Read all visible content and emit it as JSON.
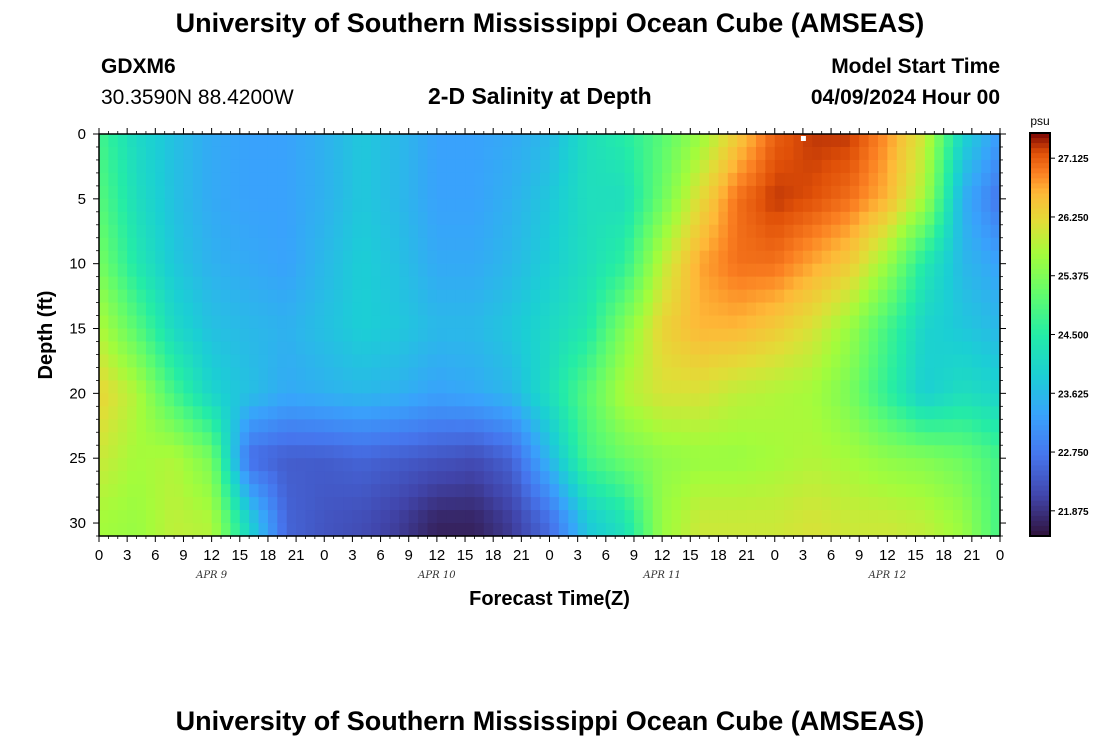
{
  "header": {
    "title": "University of Southern Mississippi Ocean Cube (AMSEAS)",
    "station": "GDXM6",
    "coords": "30.3590N  88.4200W",
    "subtitle": "2-D Salinity at Depth",
    "start_label": "Model Start Time",
    "start_value": "04/09/2024 Hour 00"
  },
  "footer": {
    "title": "University of Southern Mississippi Ocean Cube (AMSEAS)"
  },
  "chart_data": {
    "type": "heatmap",
    "title": "2-D Salinity at Depth",
    "xlabel": "Forecast Time(Z)",
    "ylabel": "Depth (ft)",
    "x_ticks": [
      "0",
      "3",
      "6",
      "9",
      "12",
      "15",
      "18",
      "21",
      "0",
      "3",
      "6",
      "9",
      "12",
      "15",
      "18",
      "21",
      "0",
      "3",
      "6",
      "9",
      "12",
      "15",
      "18",
      "21",
      "0",
      "3",
      "6",
      "9",
      "12",
      "15",
      "18",
      "21",
      "0"
    ],
    "x_tick_hours": [
      0,
      3,
      6,
      9,
      12,
      15,
      18,
      21,
      24,
      27,
      30,
      33,
      36,
      39,
      42,
      45,
      48,
      51,
      54,
      57,
      60,
      63,
      66,
      69,
      72,
      75,
      78,
      81,
      84,
      87,
      90,
      93,
      96
    ],
    "date_labels": [
      {
        "text": "APR 9",
        "hour": 12
      },
      {
        "text": "APR 10",
        "hour": 36
      },
      {
        "text": "APR 11",
        "hour": 60
      },
      {
        "text": "APR 12",
        "hour": 84
      }
    ],
    "y_ticks": [
      0,
      5,
      10,
      15,
      20,
      25,
      30
    ],
    "xlim": [
      0,
      96
    ],
    "ylim": [
      0,
      31
    ],
    "y_inverted": true,
    "colorbar": {
      "unit": "psu",
      "min": 21.5,
      "max": 27.5,
      "tick_values": [
        21.875,
        22.75,
        23.625,
        24.5,
        25.375,
        26.25,
        27.125
      ],
      "tick_labels": [
        "21.875",
        "22.750",
        "23.625",
        "24.500",
        "25.375",
        "26.250",
        "27.125"
      ],
      "colormap": "turbo"
    },
    "hours": [
      0,
      4,
      8,
      12,
      16,
      20,
      24,
      28,
      32,
      36,
      40,
      44,
      48,
      52,
      56,
      60,
      64,
      68,
      72,
      76,
      80,
      84,
      88,
      92,
      96
    ],
    "depths": [
      0,
      5,
      10,
      15,
      20,
      25,
      30
    ],
    "salinity": [
      [
        24.8,
        24.1,
        23.7,
        23.4,
        23.3,
        23.3,
        23.5,
        23.8,
        23.6,
        23.3,
        23.3,
        23.4,
        23.6,
        24.2,
        24.5,
        25.0,
        25.6,
        26.4,
        27.1,
        27.3,
        27.3,
        26.8,
        26.0,
        24.0,
        23.2
      ],
      [
        25.0,
        24.2,
        23.7,
        23.4,
        23.3,
        23.3,
        23.5,
        23.8,
        23.6,
        23.3,
        23.3,
        23.5,
        23.8,
        24.2,
        24.2,
        25.2,
        26.2,
        27.0,
        27.3,
        27.2,
        27.0,
        26.6,
        25.7,
        23.5,
        22.7
      ],
      [
        25.3,
        24.4,
        23.8,
        23.5,
        23.4,
        23.3,
        23.6,
        23.9,
        23.7,
        23.4,
        23.4,
        23.6,
        23.9,
        24.2,
        24.6,
        25.9,
        26.7,
        27.0,
        27.0,
        26.7,
        26.4,
        25.6,
        24.4,
        23.6,
        23.3
      ],
      [
        25.8,
        25.0,
        24.1,
        23.7,
        23.6,
        23.5,
        23.7,
        23.9,
        23.8,
        23.6,
        23.6,
        23.8,
        24.1,
        24.4,
        25.4,
        26.3,
        26.6,
        26.6,
        26.4,
        26.1,
        25.6,
        24.8,
        24.0,
        23.8,
        23.6
      ],
      [
        26.3,
        25.8,
        24.8,
        24.0,
        23.7,
        23.4,
        23.5,
        23.6,
        23.5,
        23.3,
        23.4,
        23.6,
        24.2,
        25.0,
        25.8,
        26.1,
        26.1,
        25.9,
        25.8,
        25.7,
        25.3,
        24.6,
        23.9,
        24.2,
        24.0
      ],
      [
        26.0,
        25.7,
        25.8,
        25.3,
        22.6,
        22.4,
        22.4,
        22.5,
        22.4,
        22.3,
        22.2,
        22.5,
        23.6,
        24.8,
        25.2,
        25.5,
        25.6,
        25.6,
        25.7,
        25.8,
        25.7,
        25.5,
        25.4,
        25.2,
        24.8
      ],
      [
        25.7,
        25.6,
        25.9,
        25.8,
        24.0,
        22.5,
        22.3,
        22.2,
        22.0,
        21.7,
        21.7,
        22.0,
        22.6,
        23.8,
        24.3,
        25.6,
        26.0,
        26.0,
        26.0,
        26.1,
        26.0,
        26.0,
        25.9,
        25.6,
        24.8
      ]
    ]
  }
}
